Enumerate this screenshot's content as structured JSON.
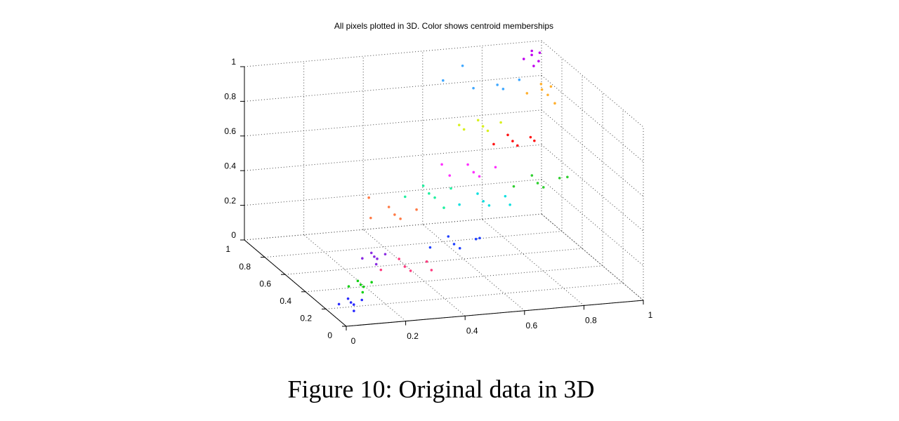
{
  "chart_data": {
    "type": "scatter3d",
    "title": "All pixels plotted in 3D. Color shows centroid memberships",
    "xlim": [
      0,
      1
    ],
    "ylim": [
      0,
      1
    ],
    "zlim": [
      0,
      1
    ],
    "xticks": [
      0,
      0.2,
      0.4,
      0.6,
      0.8,
      1
    ],
    "yticks": [
      0,
      0.2,
      0.4,
      0.6,
      0.8,
      1
    ],
    "zticks": [
      0,
      0.2,
      0.4,
      0.6,
      0.8,
      1
    ],
    "grid": true,
    "series": [
      {
        "color": "#2a2aff",
        "x": [
          0.05,
          0.08,
          0.02,
          0.07,
          0.03,
          0.06
        ],
        "y": [
          0.1,
          0.08,
          0.13,
          0.13,
          0.07,
          0.1
        ],
        "z": [
          0.08,
          0.1,
          0.06,
          0.05,
          0.12,
          0.03
        ]
      },
      {
        "color": "#10d010",
        "x": [
          0.1,
          0.13,
          0.07,
          0.12,
          0.08,
          0.11
        ],
        "y": [
          0.15,
          0.13,
          0.18,
          0.18,
          0.12,
          0.16
        ],
        "z": [
          0.15,
          0.17,
          0.13,
          0.12,
          0.19,
          0.1
        ]
      },
      {
        "color": "#8a2be2",
        "x": [
          0.18,
          0.21,
          0.15,
          0.2,
          0.16,
          0.19
        ],
        "y": [
          0.25,
          0.23,
          0.28,
          0.28,
          0.22,
          0.26
        ],
        "z": [
          0.25,
          0.27,
          0.23,
          0.22,
          0.29,
          0.2
        ]
      },
      {
        "color": "#ff3c80",
        "x": [
          0.3,
          0.36,
          0.24,
          0.34,
          0.26,
          0.4
        ],
        "y": [
          0.3,
          0.26,
          0.36,
          0.36,
          0.24,
          0.33
        ],
        "z": [
          0.15,
          0.19,
          0.11,
          0.09,
          0.23,
          0.1
        ]
      },
      {
        "color": "#ff7a45",
        "x": [
          0.3,
          0.36,
          0.24,
          0.34,
          0.26,
          0.22
        ],
        "y": [
          0.4,
          0.36,
          0.46,
          0.46,
          0.34,
          0.42
        ],
        "z": [
          0.4,
          0.44,
          0.36,
          0.34,
          0.48,
          0.5
        ]
      },
      {
        "color": "#2040ff",
        "x": [
          0.5,
          0.56,
          0.44,
          0.54,
          0.46,
          0.6
        ],
        "y": [
          0.4,
          0.36,
          0.46,
          0.46,
          0.34,
          0.44
        ],
        "z": [
          0.2,
          0.24,
          0.16,
          0.14,
          0.28,
          0.2
        ]
      },
      {
        "color": "#10e0e0",
        "x": [
          0.65,
          0.71,
          0.59,
          0.69,
          0.61,
          0.75
        ],
        "y": [
          0.55,
          0.51,
          0.61,
          0.61,
          0.49,
          0.58
        ],
        "z": [
          0.35,
          0.39,
          0.31,
          0.29,
          0.43,
          0.3
        ]
      },
      {
        "color": "#20f0a0",
        "x": [
          0.45,
          0.51,
          0.39,
          0.49,
          0.41,
          0.5
        ],
        "y": [
          0.5,
          0.46,
          0.56,
          0.56,
          0.44,
          0.5
        ],
        "z": [
          0.45,
          0.49,
          0.41,
          0.39,
          0.53,
          0.36
        ]
      },
      {
        "color": "#30d030",
        "x": [
          0.85,
          0.91,
          0.79,
          0.89,
          0.81,
          0.95
        ],
        "y": [
          0.6,
          0.56,
          0.66,
          0.66,
          0.54,
          0.6
        ],
        "z": [
          0.4,
          0.44,
          0.36,
          0.34,
          0.48,
          0.42
        ]
      },
      {
        "color": "#ff1010",
        "x": [
          0.8,
          0.85,
          0.75,
          0.83,
          0.77,
          0.88
        ],
        "y": [
          0.7,
          0.67,
          0.74,
          0.74,
          0.66,
          0.72
        ],
        "z": [
          0.6,
          0.63,
          0.57,
          0.55,
          0.66,
          0.58
        ]
      },
      {
        "color": "#d8f020",
        "x": [
          0.7,
          0.75,
          0.65,
          0.73,
          0.67,
          0.62
        ],
        "y": [
          0.7,
          0.67,
          0.74,
          0.74,
          0.66,
          0.7
        ],
        "z": [
          0.7,
          0.73,
          0.67,
          0.65,
          0.76,
          0.72
        ]
      },
      {
        "color": "#ff30ff",
        "x": [
          0.6,
          0.66,
          0.54,
          0.64,
          0.56,
          0.5
        ],
        "y": [
          0.5,
          0.46,
          0.56,
          0.56,
          0.44,
          0.52
        ],
        "z": [
          0.55,
          0.59,
          0.51,
          0.49,
          0.63,
          0.6
        ]
      },
      {
        "color": "#40a8ff",
        "x": [
          0.8,
          0.86,
          0.74,
          0.84,
          0.6,
          0.7
        ],
        "y": [
          0.85,
          0.81,
          0.91,
          0.91,
          0.8,
          0.9
        ],
        "z": [
          0.85,
          0.89,
          0.81,
          0.79,
          0.93,
          0.95
        ]
      },
      {
        "color": "#ffb030",
        "x": [
          0.95,
          0.97,
          0.91,
          0.98,
          0.93,
          0.99
        ],
        "y": [
          0.85,
          0.82,
          0.88,
          0.88,
          0.8,
          0.84
        ],
        "z": [
          0.8,
          0.83,
          0.77,
          0.75,
          0.86,
          0.72
        ]
      },
      {
        "color": "#c000f0",
        "x": [
          0.95,
          0.97,
          0.93,
          0.98,
          0.94,
          0.96
        ],
        "y": [
          0.95,
          0.93,
          0.97,
          0.97,
          0.92,
          0.96
        ],
        "z": [
          0.95,
          0.97,
          0.92,
          0.9,
          0.99,
          0.88
        ]
      }
    ]
  },
  "caption": "Figure 10: Original data in 3D"
}
